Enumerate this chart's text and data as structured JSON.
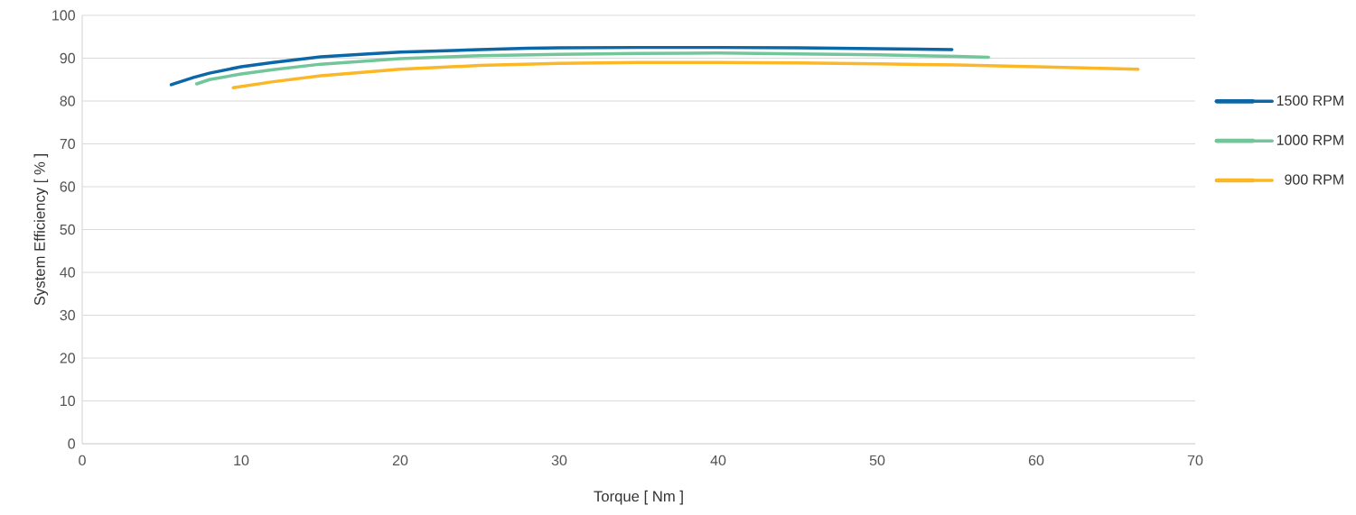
{
  "chart_data": {
    "type": "line",
    "xlabel": "Torque [ Nm ]",
    "ylabel": "System Efficiency [ % ]",
    "xlim": [
      0,
      70
    ],
    "ylim": [
      0,
      100
    ],
    "xticks": [
      0,
      10,
      20,
      30,
      40,
      50,
      60,
      70
    ],
    "yticks": [
      0,
      10,
      20,
      30,
      40,
      50,
      60,
      70,
      80,
      90,
      100
    ],
    "grid": "y",
    "legend": "right",
    "marker": "none",
    "line_style": "solid",
    "series": [
      {
        "name": "1500 RPM",
        "color": "#0b67a6",
        "x": [
          5.6,
          7,
          8,
          10,
          12,
          15,
          18,
          20,
          25,
          28,
          30,
          35,
          40,
          45,
          50,
          54.7
        ],
        "values": [
          83.8,
          85.5,
          86.5,
          88,
          89,
          90.3,
          91,
          91.4,
          92,
          92.3,
          92.4,
          92.5,
          92.5,
          92.4,
          92.2,
          92
        ]
      },
      {
        "name": "1000 RPM",
        "color": "#72c69a",
        "x": [
          7.2,
          8,
          10,
          12,
          15,
          20,
          25,
          30,
          35,
          40,
          45,
          50,
          55,
          57
        ],
        "values": [
          84,
          85,
          86.3,
          87.3,
          88.6,
          89.9,
          90.6,
          90.9,
          91.1,
          91.2,
          91,
          90.8,
          90.4,
          90.2
        ]
      },
      {
        "name": "900 RPM",
        "color": "#fbb725",
        "x": [
          9.5,
          12,
          15,
          20,
          25,
          30,
          35,
          40,
          45,
          50,
          55,
          60,
          66.4
        ],
        "values": [
          83.1,
          84.5,
          85.9,
          87.4,
          88.3,
          88.8,
          89,
          89,
          88.9,
          88.7,
          88.4,
          88,
          87.4
        ]
      }
    ]
  }
}
